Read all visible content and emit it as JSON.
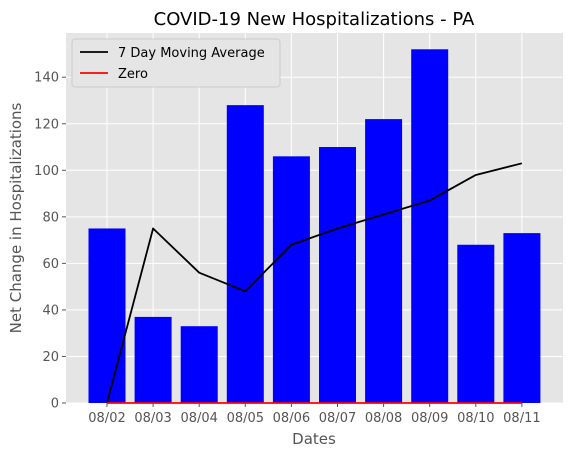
{
  "chart_data": {
    "type": "bar",
    "title": "COVID-19 New Hospitalizations - PA",
    "xlabel": "Dates",
    "ylabel": "Net Change in Hospitalizations",
    "categories": [
      "08/02",
      "08/03",
      "08/04",
      "08/05",
      "08/06",
      "08/07",
      "08/08",
      "08/09",
      "08/10",
      "08/11"
    ],
    "series": [
      {
        "kind": "bar",
        "color": "#0000ff",
        "values": [
          75,
          37,
          33,
          128,
          106,
          110,
          122,
          152,
          68,
          73
        ]
      },
      {
        "kind": "line",
        "name": "7 Day Moving Average",
        "color": "#000000",
        "values": [
          0,
          75,
          56,
          48,
          68,
          75,
          81,
          87,
          98,
          103
        ]
      },
      {
        "kind": "line",
        "name": "Zero",
        "color": "#ff0000",
        "values": [
          0,
          0,
          0,
          0,
          0,
          0,
          0,
          0,
          0,
          0
        ]
      }
    ],
    "ylim": [
      0,
      159
    ],
    "yticks": [
      0,
      20,
      40,
      60,
      80,
      100,
      120,
      140
    ],
    "grid": true,
    "legend_position": "top-left",
    "background": "#e5e5e5"
  }
}
